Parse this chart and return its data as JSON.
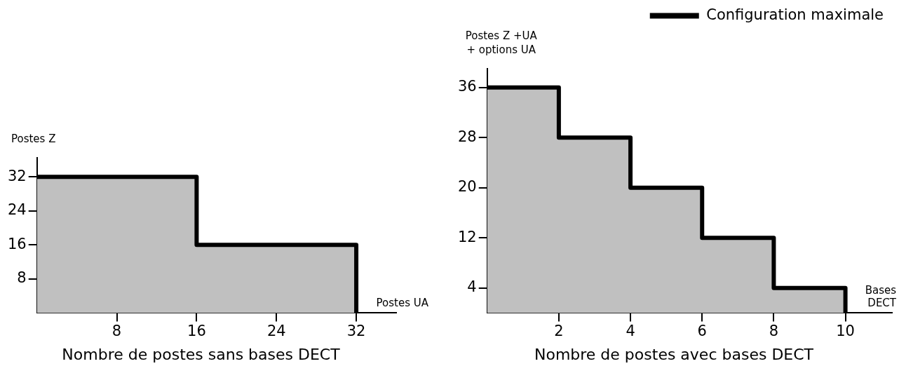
{
  "chart_data": [
    {
      "type": "step",
      "title": "Nombre de postes sans bases DECT",
      "xlabel": "Postes UA",
      "ylabel": "Postes Z",
      "x": [
        0,
        16,
        32
      ],
      "series": [
        {
          "color": "#000000",
          "values": [
            32,
            16,
            0
          ]
        }
      ],
      "xlim": [
        0,
        36
      ],
      "ylim": [
        0,
        36.5
      ],
      "xticks": [
        8,
        16,
        24,
        32
      ],
      "yticks": [
        8,
        16,
        24,
        32
      ],
      "grid": false,
      "marker": "none"
    },
    {
      "type": "step",
      "title": "Nombre de postes avec bases DECT",
      "xlabel": "Bases DECT",
      "ylabel": "Postes Z +UA + options UA",
      "x": [
        0,
        2,
        4,
        6,
        8,
        10
      ],
      "series": [
        {
          "name": "Configuration maximale",
          "color": "#000000",
          "values": [
            36,
            28,
            20,
            12,
            4,
            0
          ]
        }
      ],
      "xlim": [
        0,
        11.3
      ],
      "ylim": [
        0,
        39
      ],
      "xticks": [
        2,
        4,
        6,
        8,
        10
      ],
      "yticks": [
        4,
        12,
        20,
        28,
        36
      ],
      "grid": false,
      "marker": "none",
      "legend": "top right"
    }
  ]
}
